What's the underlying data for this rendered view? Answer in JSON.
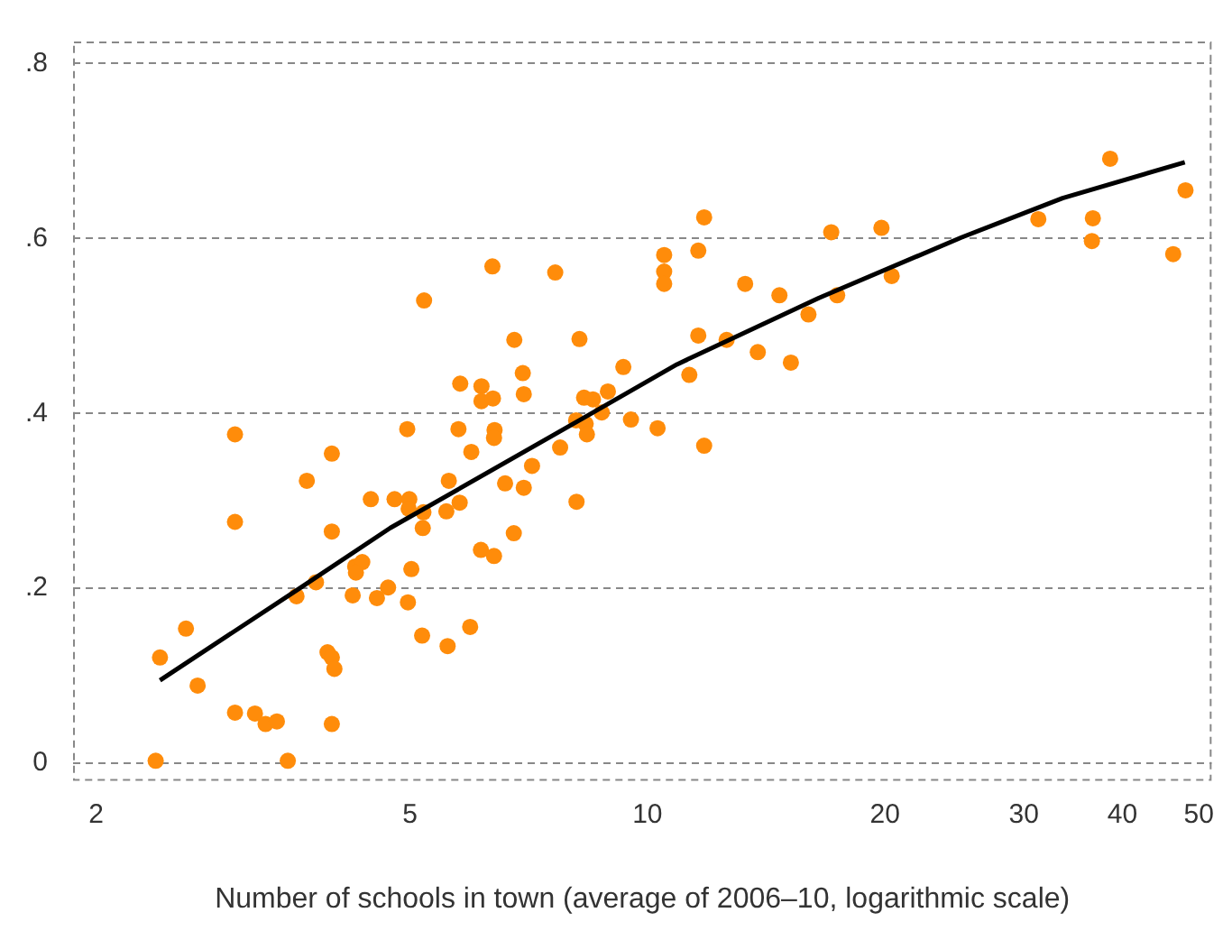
{
  "chart_data": {
    "type": "scatter",
    "xlabel": "Number of schools in town (average of 2006–10, logarithmic scale)",
    "log": "x",
    "grid": "y",
    "legend": false,
    "xlim": [
      1.87,
      51.9
    ],
    "ylim": [
      -0.02,
      0.825
    ],
    "xticks": [
      2,
      5,
      10,
      20,
      30,
      40,
      50
    ],
    "yticks": [
      0,
      {
        "value": 0.2,
        "label": ".2"
      },
      {
        "value": 0.4,
        "label": ".4"
      },
      {
        "value": 0.6,
        "label": ".6"
      },
      {
        "value": 0.8,
        "label": ".8"
      }
    ],
    "series": [
      {
        "marker": "circle",
        "color": "#ff8c0a",
        "x": [
          3.0,
          3.98,
          4.96,
          5.76,
          5.98,
          3.7,
          3.0,
          3.98,
          4.46,
          4.78,
          4.99,
          4.98,
          5.2,
          5.19,
          5.6,
          5.56,
          5.78,
          4.26,
          4.35,
          4.27,
          5.02,
          3.8,
          3.59,
          4.23,
          4.54,
          4.69,
          4.97,
          6.15,
          6.39,
          2.6,
          2.41,
          2.69,
          5.96,
          5.18,
          5.58,
          3.93,
          3.98,
          4.01,
          3.0,
          3.18,
          3.28,
          3.39,
          3.98,
          2.38,
          3.5,
          11.8,
          11.6,
          10.5,
          10.5,
          10.5,
          6.36,
          7.64,
          5.21,
          13.3,
          14.7,
          16.0,
          6.78,
          8.2,
          11.6,
          12.6,
          13.8,
          15.2,
          6.95,
          5.79,
          6.16,
          6.16,
          6.37,
          6.97,
          9.32,
          11.3,
          8.31,
          8.53,
          8.91,
          8.75,
          8.12,
          8.35,
          8.38,
          9.53,
          10.3,
          11.8,
          6.4,
          6.39,
          7.75,
          7.14,
          6.6,
          6.97,
          8.13,
          6.77,
          38.6,
          48.1,
          31.3,
          36.7,
          36.6,
          46.4,
          17.1,
          19.8,
          20.4,
          17.4
        ],
        "values": [
          0.376,
          0.354,
          0.382,
          0.382,
          0.356,
          0.323,
          0.276,
          0.265,
          0.302,
          0.302,
          0.302,
          0.291,
          0.287,
          0.269,
          0.323,
          0.288,
          0.298,
          0.225,
          0.23,
          0.218,
          0.222,
          0.207,
          0.191,
          0.192,
          0.189,
          0.201,
          0.184,
          0.244,
          0.237,
          0.154,
          0.121,
          0.089,
          0.156,
          0.146,
          0.134,
          0.127,
          0.121,
          0.108,
          0.058,
          0.057,
          0.045,
          0.048,
          0.045,
          0.003,
          0.003,
          0.624,
          0.586,
          0.581,
          0.562,
          0.548,
          0.568,
          0.561,
          0.529,
          0.548,
          0.535,
          0.513,
          0.484,
          0.485,
          0.489,
          0.484,
          0.47,
          0.458,
          0.446,
          0.434,
          0.431,
          0.414,
          0.417,
          0.422,
          0.453,
          0.444,
          0.418,
          0.416,
          0.425,
          0.401,
          0.392,
          0.388,
          0.376,
          0.393,
          0.383,
          0.363,
          0.381,
          0.372,
          0.361,
          0.34,
          0.32,
          0.315,
          0.299,
          0.263,
          0.691,
          0.655,
          0.622,
          0.623,
          0.597,
          0.582,
          0.607,
          0.612,
          0.557,
          0.535
        ]
      },
      {
        "type": "line",
        "color": "#000000",
        "x": [
          2.41,
          3.58,
          4.72,
          8.38,
          10.9,
          16.5,
          25.0,
          33.6,
          48.0
        ],
        "values": [
          0.095,
          0.197,
          0.269,
          0.397,
          0.456,
          0.532,
          0.601,
          0.646,
          0.687
        ]
      }
    ]
  }
}
